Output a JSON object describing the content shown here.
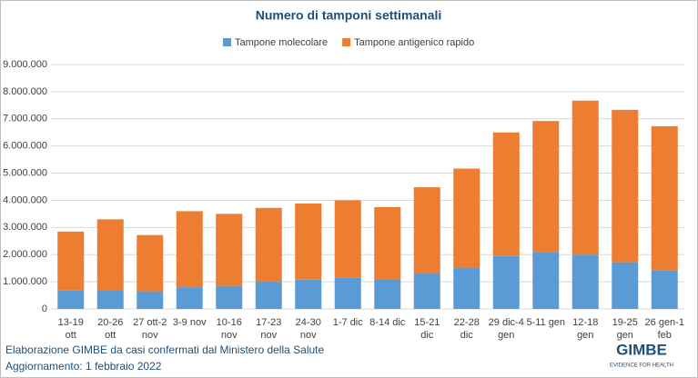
{
  "chart_data": {
    "type": "stacked_bar",
    "title": "Numero di tamponi settimanali",
    "categories": [
      [
        "13-19",
        "ott"
      ],
      [
        "20-26",
        "ott"
      ],
      [
        "27 ott-2",
        "nov"
      ],
      [
        "3-9 nov"
      ],
      [
        "10-16",
        "nov"
      ],
      [
        "17-23",
        "nov"
      ],
      [
        "24-30",
        "nov"
      ],
      [
        "1-7 dic"
      ],
      [
        "8-14 dic"
      ],
      [
        "15-21",
        "dic"
      ],
      [
        "22-28",
        "dic"
      ],
      [
        "29 dic-4",
        "gen"
      ],
      [
        "5-11 gen"
      ],
      [
        "12-18",
        "gen"
      ],
      [
        "19-25",
        "gen"
      ],
      [
        "26 gen-1",
        "feb"
      ]
    ],
    "series": [
      {
        "name": "Tampone molecolare",
        "color": "#5b9bd5",
        "values": [
          680000,
          700000,
          650000,
          800000,
          850000,
          1000000,
          1080000,
          1150000,
          1100000,
          1320000,
          1520000,
          1950000,
          2100000,
          2000000,
          1720000,
          1430000
        ]
      },
      {
        "name": "Tampone antigenico rapido",
        "color": "#ed7d31",
        "values": [
          2170000,
          2600000,
          2070000,
          2800000,
          2650000,
          2720000,
          2800000,
          2850000,
          2650000,
          3160000,
          3650000,
          4550000,
          4820000,
          5670000,
          5610000,
          5300000
        ]
      }
    ],
    "ylim": [
      0,
      9000000
    ],
    "yticks": [
      {
        "value": 0,
        "label": "0"
      },
      {
        "value": 1000000,
        "label": "1.000.000"
      },
      {
        "value": 2000000,
        "label": "2.000.000"
      },
      {
        "value": 3000000,
        "label": "3.000.000"
      },
      {
        "value": 4000000,
        "label": "4.000.000"
      },
      {
        "value": 5000000,
        "label": "5.000.000"
      },
      {
        "value": 6000000,
        "label": "6.000.000"
      },
      {
        "value": 7000000,
        "label": "7.000.000"
      },
      {
        "value": 8000000,
        "label": "8.000.000"
      },
      {
        "value": 9000000,
        "label": "9.000.000"
      }
    ],
    "grid": true,
    "legend": "top",
    "source": "Elaborazione GIMBE da casi confermati dal Ministero della Salute",
    "updated": "Aggiornamento: 1 febbraio 2022",
    "logo": "GIMBE",
    "logo_tagline": "EVIDENCE FOR HEALTH"
  }
}
